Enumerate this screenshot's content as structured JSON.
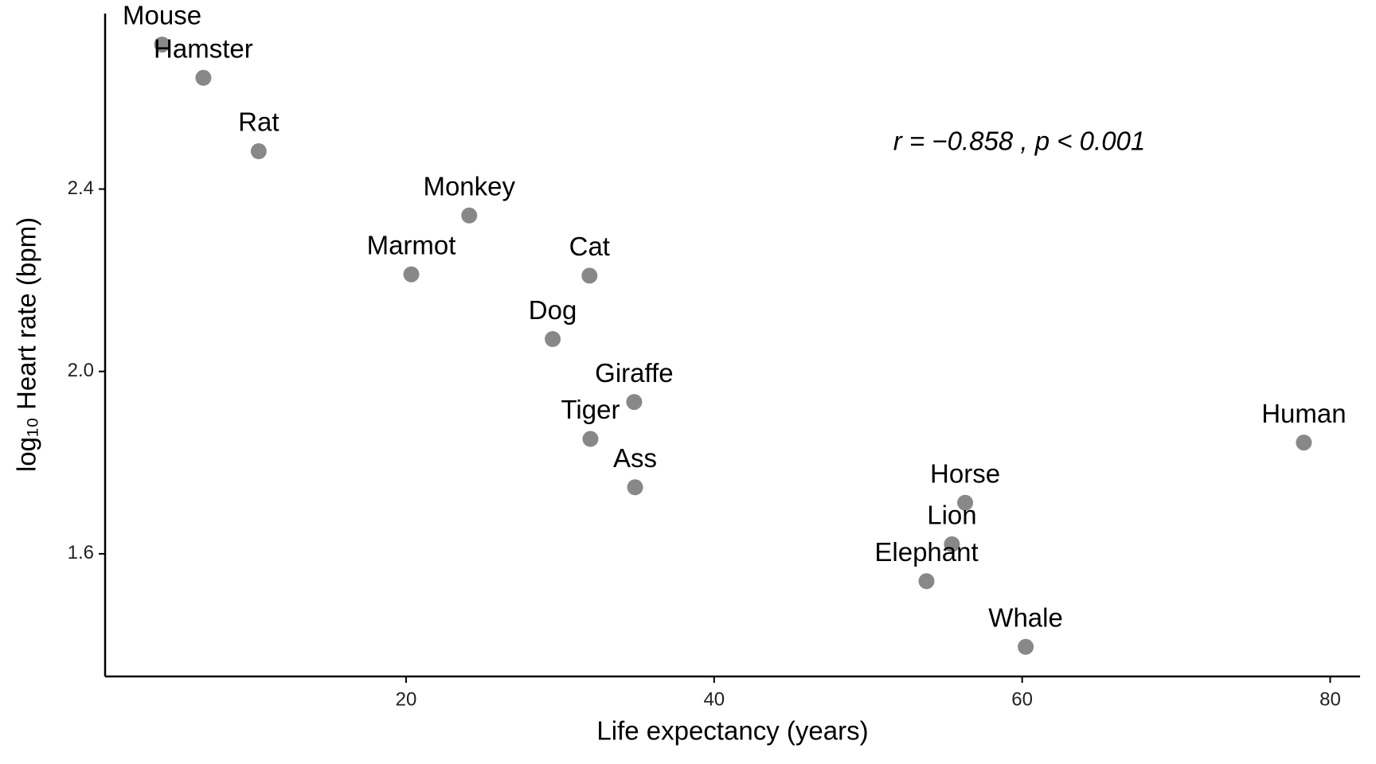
{
  "chart_data": {
    "type": "scatter",
    "x_label": "Life expectancy (years)",
    "y_label": "log₁₀ Heart rate (bpm)",
    "annotation": "r = −0.858 , p < 0.001",
    "labels": [
      "Mouse",
      "Hamster",
      "Rat",
      "Monkey",
      "Marmot",
      "Cat",
      "Dog",
      "Giraffe",
      "Tiger",
      "Ass",
      "Horse",
      "Lion",
      "Elephant",
      "Whale",
      "Human"
    ],
    "x": [
      4.16,
      6.84,
      10.43,
      24.1,
      20.34,
      31.91,
      29.52,
      34.81,
      31.97,
      34.87,
      56.3,
      55.44,
      53.79,
      60.23,
      78.29
    ],
    "values": [
      2.717,
      2.644,
      2.483,
      2.342,
      2.213,
      2.21,
      2.071,
      1.933,
      1.852,
      1.746,
      1.712,
      1.621,
      1.54,
      1.396,
      1.844
    ],
    "color": "#888888",
    "xlim": [
      0.46,
      81.94
    ],
    "ylim": [
      1.331,
      2.785
    ],
    "xticks": [
      20,
      40,
      60,
      80
    ],
    "yticks": [
      1.6,
      {
        "value": 2,
        "label": "2.0"
      },
      2.4
    ],
    "grid": false
  }
}
